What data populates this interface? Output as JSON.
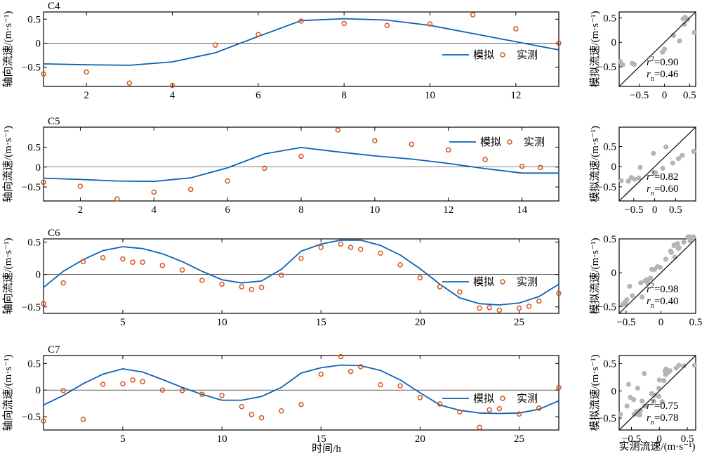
{
  "figure": {
    "time_axis_label": "时间/h",
    "scatter_x_label": "实测流速/(m·s⁻¹)",
    "scatter_y_label": "模拟流速/(m·s⁻¹)",
    "series_y_label": "轴向流速/(m·s⁻¹)",
    "legend_sim": "模拟",
    "legend_obs": "实测",
    "colors": {
      "sim": "#0b63b5",
      "obs": "#d9541a",
      "scatter": "#b5b5b5",
      "axis": "#000000"
    }
  },
  "chart_data": [
    {
      "type": "line",
      "title": "C4",
      "xlim": [
        1,
        13
      ],
      "ylim": [
        -0.9,
        0.65
      ],
      "xticks": [
        2,
        4,
        6,
        8,
        10,
        12
      ],
      "yticks": [
        -0.5,
        0,
        0.5
      ],
      "ylabel": "轴向流速/(m·s⁻¹)",
      "legend": {
        "placement": "right",
        "entries": [
          "模拟",
          "实测"
        ]
      },
      "series": [
        {
          "name": "模拟",
          "kind": "line",
          "x": [
            1,
            2,
            3,
            4,
            5,
            6,
            7,
            8,
            9,
            10,
            11,
            12,
            13
          ],
          "y": [
            -0.43,
            -0.45,
            -0.46,
            -0.39,
            -0.2,
            0.14,
            0.47,
            0.51,
            0.48,
            0.37,
            0.2,
            0.03,
            -0.14
          ]
        },
        {
          "name": "实测",
          "kind": "scatter",
          "x": [
            1,
            2,
            3,
            4,
            5,
            6,
            7,
            8,
            9,
            10,
            11,
            12,
            13
          ],
          "y": [
            -0.64,
            -0.6,
            -0.83,
            -0.88,
            -0.04,
            0.18,
            0.46,
            0.41,
            0.37,
            0.4,
            0.59,
            0.3,
            0.0
          ]
        }
      ],
      "scatter_panel": {
        "xlim": [
          -0.9,
          0.62
        ],
        "ylim": [
          -0.9,
          0.62
        ],
        "xticks": [
          -0.5,
          0,
          0.5
        ],
        "yticks": [
          -0.5,
          0,
          0.5
        ],
        "x": [
          -0.64,
          -0.6,
          -0.83,
          -0.88,
          -0.04,
          0.18,
          0.46,
          0.41,
          0.37,
          0.4,
          0.59,
          0.3,
          0.0
        ],
        "y": [
          -0.43,
          -0.45,
          -0.46,
          -0.39,
          -0.2,
          0.14,
          0.47,
          0.51,
          0.48,
          0.37,
          0.2,
          0.03,
          -0.14
        ],
        "r2_value": "=0.90",
        "rn_value": "=0.46"
      }
    },
    {
      "type": "line",
      "title": "C5",
      "xlim": [
        1,
        15
      ],
      "ylim": [
        -0.85,
        1.0
      ],
      "xticks": [
        2,
        4,
        6,
        8,
        10,
        12,
        14
      ],
      "yticks": [
        -0.5,
        0,
        0.5
      ],
      "ylabel": "轴向流速/(m·s⁻¹)",
      "legend": {
        "placement": "top-right",
        "entries": [
          "模拟",
          "实测"
        ]
      },
      "series": [
        {
          "name": "模拟",
          "kind": "line",
          "x": [
            1,
            2,
            3,
            4,
            5,
            6,
            7,
            8,
            9,
            10,
            11,
            12,
            13,
            14,
            15
          ],
          "y": [
            -0.28,
            -0.31,
            -0.35,
            -0.36,
            -0.27,
            -0.02,
            0.33,
            0.49,
            0.38,
            0.28,
            0.2,
            0.09,
            -0.04,
            -0.15,
            -0.15
          ]
        },
        {
          "name": "实测",
          "kind": "scatter",
          "x": [
            1,
            2,
            3,
            4,
            5,
            6,
            7,
            8,
            9,
            10,
            11,
            12,
            13,
            14,
            14.5
          ],
          "y": [
            -0.38,
            -0.48,
            -0.8,
            -0.63,
            -0.56,
            -0.35,
            -0.03,
            0.27,
            0.93,
            0.66,
            0.57,
            0.43,
            0.19,
            0.02,
            -0.01
          ]
        }
      ],
      "scatter_panel": {
        "xlim": [
          -0.85,
          0.98
        ],
        "ylim": [
          -0.85,
          0.98
        ],
        "xticks": [
          -0.5,
          0,
          0.5
        ],
        "yticks": [
          -0.5,
          0,
          0.5
        ],
        "x": [
          -0.38,
          -0.48,
          -0.8,
          -0.63,
          -0.56,
          -0.35,
          -0.03,
          0.27,
          0.93,
          0.66,
          0.57,
          0.43,
          0.19,
          0.02,
          -0.01
        ],
        "y": [
          -0.28,
          -0.31,
          -0.35,
          -0.36,
          -0.27,
          -0.02,
          0.33,
          0.49,
          0.38,
          0.28,
          0.2,
          0.09,
          -0.04,
          -0.15,
          -0.15
        ],
        "r2_value": "=0.82",
        "rn_value": "=0.60"
      }
    },
    {
      "type": "line",
      "title": "C6",
      "xlim": [
        1,
        27
      ],
      "ylim": [
        -0.6,
        0.55
      ],
      "xticks": [
        5,
        10,
        15,
        20,
        25
      ],
      "yticks": [
        -0.5,
        0,
        0.5
      ],
      "ylabel": "轴向流速/(m·s⁻¹)",
      "legend": {
        "placement": "right",
        "entries": [
          "模拟",
          "实测"
        ]
      },
      "series": [
        {
          "name": "模拟",
          "kind": "line",
          "x": [
            1,
            2,
            3,
            4,
            5,
            6,
            7,
            8,
            9,
            10,
            11,
            12,
            13,
            14,
            15,
            16,
            17,
            18,
            19,
            20,
            21,
            22,
            23,
            24,
            25,
            26,
            27
          ],
          "y": [
            -0.2,
            0.05,
            0.23,
            0.37,
            0.43,
            0.4,
            0.32,
            0.2,
            0.05,
            -0.08,
            -0.13,
            -0.1,
            0.08,
            0.36,
            0.47,
            0.53,
            0.53,
            0.45,
            0.3,
            0.09,
            -0.15,
            -0.36,
            -0.45,
            -0.47,
            -0.44,
            -0.34,
            -0.15
          ]
        },
        {
          "name": "实测",
          "kind": "scatter",
          "x": [
            1,
            2,
            3,
            4,
            5,
            5.5,
            6,
            7,
            8,
            9,
            10,
            11,
            11.5,
            12,
            13,
            14,
            15,
            16,
            16.5,
            17,
            18,
            19,
            20,
            21,
            22,
            23,
            23.5,
            24,
            25,
            25.5,
            26,
            27
          ],
          "y": [
            -0.45,
            -0.13,
            0.2,
            0.26,
            0.24,
            0.19,
            0.19,
            0.14,
            0.07,
            -0.09,
            -0.15,
            -0.19,
            -0.23,
            -0.2,
            -0.01,
            0.25,
            0.42,
            0.47,
            0.42,
            0.39,
            0.33,
            0.15,
            -0.05,
            -0.19,
            -0.27,
            -0.52,
            -0.51,
            -0.55,
            -0.52,
            -0.49,
            -0.41,
            -0.29
          ]
        }
      ],
      "scatter_panel": {
        "xlim": [
          -0.6,
          0.5
        ],
        "ylim": [
          -0.6,
          0.5
        ],
        "xticks": [
          -0.5,
          0,
          0.5
        ],
        "yticks": [
          -0.5,
          0,
          0.5
        ],
        "x": [
          -0.45,
          -0.13,
          0.2,
          0.26,
          0.24,
          0.19,
          0.19,
          0.14,
          0.07,
          -0.09,
          -0.15,
          -0.19,
          -0.23,
          -0.2,
          -0.01,
          0.25,
          0.42,
          0.47,
          0.42,
          0.39,
          0.33,
          0.15,
          -0.05,
          -0.19,
          -0.27,
          -0.52,
          -0.51,
          -0.55,
          -0.52,
          -0.49,
          -0.41,
          -0.29
        ],
        "y": [
          -0.2,
          0.05,
          0.23,
          0.37,
          0.43,
          0.41,
          0.4,
          0.32,
          0.2,
          0.05,
          -0.08,
          -0.13,
          -0.12,
          -0.1,
          0.08,
          0.36,
          0.47,
          0.53,
          0.53,
          0.53,
          0.45,
          0.3,
          0.09,
          -0.15,
          -0.36,
          -0.45,
          -0.46,
          -0.47,
          -0.44,
          -0.4,
          -0.34,
          -0.15
        ],
        "r2_value": "=0.98",
        "rn_value": "=0.40"
      }
    },
    {
      "type": "line",
      "title": "C7",
      "xlim": [
        1,
        27
      ],
      "ylim": [
        -0.75,
        0.65
      ],
      "xticks": [
        5,
        10,
        15,
        20,
        25
      ],
      "yticks": [
        -0.5,
        0,
        0.5
      ],
      "ylabel": "轴向流速/(m·s⁻¹)",
      "xlabel": "时间/h",
      "legend": {
        "placement": "right",
        "entries": [
          "模拟",
          "实测"
        ]
      },
      "series": [
        {
          "name": "模拟",
          "kind": "line",
          "x": [
            1,
            2,
            3,
            4,
            5,
            6,
            7,
            8,
            9,
            10,
            11,
            12,
            13,
            14,
            15,
            16,
            17,
            18,
            19,
            20,
            21,
            22,
            23,
            24,
            25,
            26,
            27
          ],
          "y": [
            -0.28,
            -0.1,
            0.12,
            0.3,
            0.4,
            0.34,
            0.2,
            0.05,
            -0.08,
            -0.19,
            -0.19,
            -0.12,
            0.05,
            0.32,
            0.42,
            0.47,
            0.46,
            0.37,
            0.19,
            -0.05,
            -0.28,
            -0.38,
            -0.43,
            -0.44,
            -0.43,
            -0.36,
            -0.2
          ]
        },
        {
          "name": "实测",
          "kind": "scatter",
          "x": [
            1,
            2,
            3,
            4,
            5,
            5.5,
            6,
            7,
            8,
            9,
            10,
            11,
            11.5,
            12,
            13,
            14,
            15,
            16,
            16.5,
            17,
            18,
            19,
            20,
            21,
            22,
            23,
            23.5,
            24,
            25,
            26,
            27
          ],
          "y": [
            -0.58,
            -0.01,
            -0.55,
            0.11,
            0.12,
            0.19,
            0.16,
            0.0,
            -0.01,
            -0.08,
            -0.1,
            -0.31,
            -0.46,
            -0.52,
            -0.39,
            -0.27,
            0.3,
            0.63,
            0.35,
            0.44,
            0.1,
            0.08,
            -0.14,
            -0.26,
            -0.41,
            -0.7,
            -0.37,
            -0.35,
            -0.45,
            -0.34,
            0.05
          ]
        }
      ],
      "scatter_panel": {
        "xlim": [
          -0.72,
          0.65
        ],
        "ylim": [
          -0.72,
          0.65
        ],
        "xticks": [
          -0.5,
          0,
          0.5
        ],
        "yticks": [
          -0.5,
          0,
          0.5
        ],
        "xlabel": "实测流速/(m·s⁻¹)",
        "x": [
          -0.58,
          -0.01,
          -0.55,
          0.11,
          0.12,
          0.19,
          0.16,
          0.0,
          -0.01,
          -0.08,
          -0.1,
          -0.31,
          -0.46,
          -0.52,
          -0.39,
          -0.27,
          0.3,
          0.63,
          0.35,
          0.44,
          0.1,
          0.08,
          -0.14,
          -0.26,
          -0.41,
          -0.7,
          -0.37,
          -0.35,
          -0.45,
          -0.34,
          0.05
        ],
        "y": [
          -0.28,
          -0.1,
          0.12,
          0.3,
          0.4,
          0.37,
          0.34,
          0.2,
          0.05,
          -0.08,
          -0.19,
          -0.19,
          -0.16,
          -0.12,
          0.05,
          0.32,
          0.42,
          0.47,
          0.47,
          0.46,
          0.37,
          0.19,
          -0.05,
          -0.28,
          -0.38,
          -0.43,
          -0.44,
          -0.44,
          -0.43,
          -0.36,
          -0.2
        ],
        "r2_value": "=0.75",
        "rn_value": "=0.78"
      }
    }
  ]
}
